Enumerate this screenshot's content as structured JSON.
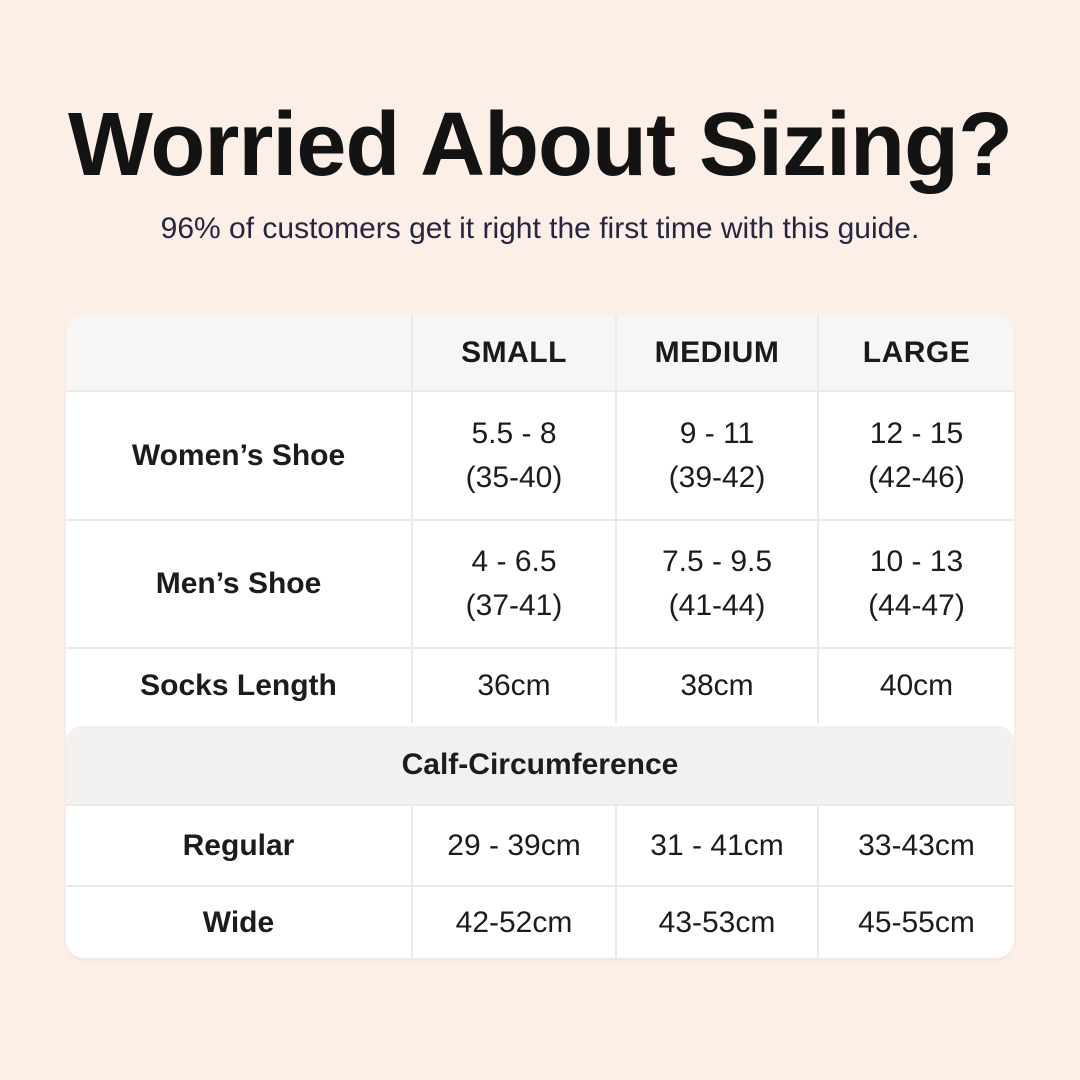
{
  "page": {
    "background_color": "#fcefe7",
    "title": "Worried About Sizing?",
    "subtitle": "96% of customers get it right the first time with this guide.",
    "title_color": "#131313",
    "subtitle_color": "#262640"
  },
  "size_table": {
    "column_headers": [
      "SMALL",
      "MEDIUM",
      "LARGE"
    ],
    "shoe_rows": [
      {
        "label": "Women’s Shoe",
        "small": [
          "5.5 - 8",
          "(35-40)"
        ],
        "medium": [
          "9 - 11",
          "(39-42)"
        ],
        "large": [
          "12 - 15",
          "(42-46)"
        ]
      },
      {
        "label": "Men’s Shoe",
        "small": [
          "4 - 6.5",
          "(37-41)"
        ],
        "medium": [
          "7.5 - 9.5",
          "(41-44)"
        ],
        "large": [
          "10 - 13",
          "(44-47)"
        ]
      }
    ],
    "socks_length_row": {
      "label": "Socks Length",
      "small": "36cm",
      "medium": "38cm",
      "large": "40cm"
    },
    "section_header": "Calf-Circumference",
    "calf_rows": [
      {
        "label": "Regular",
        "small": "29 - 39cm",
        "medium": "31 - 41cm",
        "large": "33-43cm"
      },
      {
        "label": "Wide",
        "small": "42-52cm",
        "medium": "43-53cm",
        "large": "45-55cm"
      }
    ],
    "colors": {
      "header_bg": "#f7f6f5",
      "section_bg": "#f2f1ef",
      "border": "#eceae6",
      "cell_bg": "#ffffff",
      "text": "#1c1c1c"
    }
  }
}
